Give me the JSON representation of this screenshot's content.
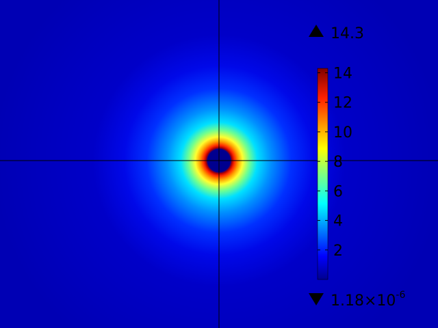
{
  "chart_data": {
    "type": "heatmap",
    "title": "",
    "xlabel": "",
    "ylabel": "",
    "field": {
      "shape": "radial",
      "peak_value": 14.3,
      "description_values": {
        "hole_value": 1.18e-06,
        "ring_peak": 14.3,
        "far_field": 0.5
      }
    },
    "crosshair": true,
    "colorbar": {
      "colormap": "jet",
      "placement": "right",
      "ticks": [
        {
          "value": 2,
          "label": "2"
        },
        {
          "value": 4,
          "label": "4"
        },
        {
          "value": 6,
          "label": "6"
        },
        {
          "value": 8,
          "label": "8"
        },
        {
          "value": 10,
          "label": "10"
        },
        {
          "value": 12,
          "label": "12"
        },
        {
          "value": 14,
          "label": "14"
        }
      ],
      "max_label": "14.3",
      "min_label_mantissa": "1.18×10",
      "min_label_exponent": "-6",
      "max_value": 14.3,
      "min_value": 1.18e-06
    }
  }
}
